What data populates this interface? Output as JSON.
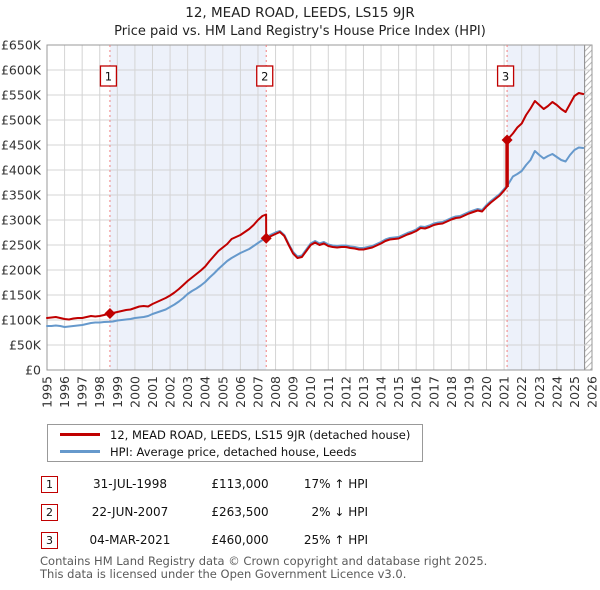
{
  "header": {
    "title": "12, MEAD ROAD, LEEDS, LS15 9JR",
    "subtitle": "Price paid vs. HM Land Registry's House Price Index (HPI)"
  },
  "legend": {
    "series": [
      {
        "label": "12, MEAD ROAD, LEEDS, LS15 9JR (detached house)",
        "color": "#c00000"
      },
      {
        "label": "HPI: Average price, detached house, Leeds",
        "color": "#6699cc"
      }
    ]
  },
  "transactions": [
    {
      "num": "1",
      "date": "31-JUL-1998",
      "price": "£113,000",
      "hpi": "17% ↑ HPI"
    },
    {
      "num": "2",
      "date": "22-JUN-2007",
      "price": "£263,500",
      "hpi": "2% ↓ HPI"
    },
    {
      "num": "3",
      "date": "04-MAR-2021",
      "price": "£460,000",
      "hpi": "25% ↑ HPI"
    }
  ],
  "footer": {
    "line1": "Contains HM Land Registry data © Crown copyright and database right 2025.",
    "line2": "This data is licensed under the Open Government Licence v3.0."
  },
  "colors": {
    "property_line": "#c00000",
    "hpi_line": "#6699cc",
    "sale_dashed_line": "#f08080",
    "shaded_band": "#edf1fa",
    "gridline": "#d4d4d4",
    "frame": "#999999",
    "axis_text": "#333333",
    "hatch_line": "#bbbbbb"
  },
  "chart_data": {
    "type": "line",
    "title": "12, MEAD ROAD, LEEDS, LS15 9JR",
    "subtitle": "Price paid vs. HM Land Registry's House Price Index (HPI)",
    "unit": "GBP thousands",
    "x_range": [
      1995,
      2026
    ],
    "ylim_k": [
      0,
      650
    ],
    "grid": true,
    "legend_position": "bottom-left",
    "y_ticks": [
      {
        "v": 0,
        "label": "£0"
      },
      {
        "v": 50,
        "label": "£50K"
      },
      {
        "v": 100,
        "label": "£100K"
      },
      {
        "v": 150,
        "label": "£150K"
      },
      {
        "v": 200,
        "label": "£200K"
      },
      {
        "v": 250,
        "label": "£250K"
      },
      {
        "v": 300,
        "label": "£300K"
      },
      {
        "v": 350,
        "label": "£350K"
      },
      {
        "v": 400,
        "label": "£400K"
      },
      {
        "v": 450,
        "label": "£450K"
      },
      {
        "v": 500,
        "label": "£500K"
      },
      {
        "v": 550,
        "label": "£550K"
      },
      {
        "v": 600,
        "label": "£600K"
      },
      {
        "v": 650,
        "label": "£650K"
      }
    ],
    "x_ticks": [
      1995,
      1996,
      1997,
      1998,
      1999,
      2000,
      2001,
      2002,
      2003,
      2004,
      2005,
      2006,
      2007,
      2008,
      2009,
      2010,
      2011,
      2012,
      2013,
      2014,
      2015,
      2016,
      2017,
      2018,
      2019,
      2020,
      2021,
      2022,
      2023,
      2024,
      2025,
      2026
    ],
    "shaded_bands": [
      [
        1998.58,
        2007.47
      ],
      [
        2021.17,
        2025.58
      ]
    ],
    "future_hatch": [
      2025.58,
      2026
    ],
    "sale_markers": [
      {
        "num": "1",
        "x": 1998.58,
        "value_k": 113,
        "date": "31-JUL-1998",
        "vs_hpi": "17% ↑ HPI"
      },
      {
        "num": "2",
        "x": 2007.47,
        "value_k": 263.5,
        "date": "22-JUN-2007",
        "vs_hpi": "2% ↓ HPI"
      },
      {
        "num": "3",
        "x": 2021.17,
        "value_k": 460,
        "date": "04-MAR-2021",
        "vs_hpi": "25% ↑ HPI",
        "jump_from_k": 366
      }
    ],
    "series": [
      {
        "name": "HPI: Average price, detached house, Leeds",
        "color": "#6699cc",
        "points": [
          [
            1995.0,
            88
          ],
          [
            1995.25,
            88
          ],
          [
            1995.5,
            89
          ],
          [
            1995.75,
            88
          ],
          [
            1996.0,
            86
          ],
          [
            1996.25,
            87
          ],
          [
            1996.5,
            88
          ],
          [
            1996.75,
            89
          ],
          [
            1997.0,
            90
          ],
          [
            1997.25,
            92
          ],
          [
            1997.5,
            94
          ],
          [
            1997.75,
            95
          ],
          [
            1998.0,
            95
          ],
          [
            1998.25,
            96
          ],
          [
            1998.58,
            96.5
          ],
          [
            1998.75,
            97
          ],
          [
            1999.0,
            99
          ],
          [
            1999.25,
            100
          ],
          [
            1999.5,
            101
          ],
          [
            1999.75,
            102
          ],
          [
            2000.0,
            104
          ],
          [
            2000.25,
            105
          ],
          [
            2000.5,
            106
          ],
          [
            2000.75,
            108
          ],
          [
            2001.0,
            112
          ],
          [
            2001.25,
            115
          ],
          [
            2001.5,
            118
          ],
          [
            2001.75,
            121
          ],
          [
            2002.0,
            126
          ],
          [
            2002.25,
            131
          ],
          [
            2002.5,
            137
          ],
          [
            2002.75,
            144
          ],
          [
            2003.0,
            152
          ],
          [
            2003.25,
            158
          ],
          [
            2003.5,
            163
          ],
          [
            2003.75,
            169
          ],
          [
            2004.0,
            176
          ],
          [
            2004.25,
            185
          ],
          [
            2004.5,
            193
          ],
          [
            2004.75,
            202
          ],
          [
            2005.0,
            210
          ],
          [
            2005.25,
            218
          ],
          [
            2005.5,
            224
          ],
          [
            2005.75,
            229
          ],
          [
            2006.0,
            234
          ],
          [
            2006.25,
            238
          ],
          [
            2006.5,
            242
          ],
          [
            2006.75,
            248
          ],
          [
            2007.0,
            254
          ],
          [
            2007.25,
            260
          ],
          [
            2007.5,
            266
          ],
          [
            2007.75,
            271
          ],
          [
            2008.0,
            275
          ],
          [
            2008.25,
            278
          ],
          [
            2008.5,
            270
          ],
          [
            2008.75,
            252
          ],
          [
            2009.0,
            236
          ],
          [
            2009.25,
            227
          ],
          [
            2009.5,
            229
          ],
          [
            2009.75,
            241
          ],
          [
            2010.0,
            253
          ],
          [
            2010.25,
            258
          ],
          [
            2010.5,
            253
          ],
          [
            2010.75,
            256
          ],
          [
            2011.0,
            251
          ],
          [
            2011.25,
            249
          ],
          [
            2011.5,
            248
          ],
          [
            2011.75,
            249
          ],
          [
            2012.0,
            249
          ],
          [
            2012.25,
            247
          ],
          [
            2012.5,
            246
          ],
          [
            2012.75,
            244
          ],
          [
            2013.0,
            244
          ],
          [
            2013.25,
            246
          ],
          [
            2013.5,
            248
          ],
          [
            2013.75,
            252
          ],
          [
            2014.0,
            256
          ],
          [
            2014.25,
            261
          ],
          [
            2014.5,
            264
          ],
          [
            2014.75,
            265
          ],
          [
            2015.0,
            266
          ],
          [
            2015.25,
            270
          ],
          [
            2015.5,
            274
          ],
          [
            2015.75,
            277
          ],
          [
            2016.0,
            281
          ],
          [
            2016.25,
            287
          ],
          [
            2016.5,
            286
          ],
          [
            2016.75,
            289
          ],
          [
            2017.0,
            293
          ],
          [
            2017.25,
            295
          ],
          [
            2017.5,
            296
          ],
          [
            2017.75,
            300
          ],
          [
            2018.0,
            304
          ],
          [
            2018.25,
            307
          ],
          [
            2018.5,
            308
          ],
          [
            2018.75,
            312
          ],
          [
            2019.0,
            316
          ],
          [
            2019.25,
            319
          ],
          [
            2019.5,
            322
          ],
          [
            2019.75,
            320
          ],
          [
            2020.0,
            330
          ],
          [
            2020.25,
            338
          ],
          [
            2020.5,
            345
          ],
          [
            2020.75,
            352
          ],
          [
            2021.0,
            362
          ],
          [
            2021.17,
            368
          ],
          [
            2021.5,
            387
          ],
          [
            2021.75,
            392
          ],
          [
            2022.0,
            398
          ],
          [
            2022.25,
            410
          ],
          [
            2022.5,
            420
          ],
          [
            2022.75,
            438
          ],
          [
            2023.0,
            430
          ],
          [
            2023.25,
            423
          ],
          [
            2023.5,
            428
          ],
          [
            2023.75,
            432
          ],
          [
            2024.0,
            426
          ],
          [
            2024.25,
            420
          ],
          [
            2024.5,
            417
          ],
          [
            2024.75,
            430
          ],
          [
            2025.0,
            440
          ],
          [
            2025.25,
            445
          ],
          [
            2025.5,
            444
          ]
        ]
      },
      {
        "name": "12, MEAD ROAD, LEEDS, LS15 9JR (detached house)",
        "color": "#c00000",
        "points": [
          [
            1995.0,
            104
          ],
          [
            1995.25,
            105
          ],
          [
            1995.5,
            106
          ],
          [
            1995.75,
            104
          ],
          [
            1996.0,
            102
          ],
          [
            1996.25,
            101
          ],
          [
            1996.5,
            103
          ],
          [
            1996.75,
            104
          ],
          [
            1997.0,
            104
          ],
          [
            1997.25,
            106
          ],
          [
            1997.5,
            108
          ],
          [
            1997.75,
            107
          ],
          [
            1998.0,
            108
          ],
          [
            1998.25,
            110
          ],
          [
            1998.58,
            113
          ],
          [
            1998.75,
            114
          ],
          [
            1999.0,
            116
          ],
          [
            1999.25,
            118
          ],
          [
            1999.5,
            120
          ],
          [
            1999.75,
            121
          ],
          [
            2000.0,
            124
          ],
          [
            2000.25,
            127
          ],
          [
            2000.5,
            128
          ],
          [
            2000.75,
            127
          ],
          [
            2001.0,
            132
          ],
          [
            2001.25,
            136
          ],
          [
            2001.5,
            140
          ],
          [
            2001.75,
            144
          ],
          [
            2002.0,
            149
          ],
          [
            2002.25,
            155
          ],
          [
            2002.5,
            162
          ],
          [
            2002.75,
            170
          ],
          [
            2003.0,
            178
          ],
          [
            2003.25,
            185
          ],
          [
            2003.5,
            192
          ],
          [
            2003.75,
            199
          ],
          [
            2004.0,
            207
          ],
          [
            2004.25,
            218
          ],
          [
            2004.5,
            228
          ],
          [
            2004.75,
            238
          ],
          [
            2005.0,
            245
          ],
          [
            2005.25,
            252
          ],
          [
            2005.5,
            262
          ],
          [
            2005.75,
            266
          ],
          [
            2006.0,
            270
          ],
          [
            2006.25,
            276
          ],
          [
            2006.5,
            282
          ],
          [
            2006.75,
            290
          ],
          [
            2007.0,
            300
          ],
          [
            2007.25,
            308
          ],
          [
            2007.46,
            311
          ],
          [
            2007.47,
            263.5
          ],
          [
            2007.75,
            268
          ],
          [
            2008.0,
            272
          ],
          [
            2008.25,
            276
          ],
          [
            2008.5,
            268
          ],
          [
            2008.75,
            250
          ],
          [
            2009.0,
            233
          ],
          [
            2009.25,
            224
          ],
          [
            2009.5,
            226
          ],
          [
            2009.75,
            238
          ],
          [
            2010.0,
            250
          ],
          [
            2010.25,
            255
          ],
          [
            2010.5,
            250
          ],
          [
            2010.75,
            253
          ],
          [
            2011.0,
            248
          ],
          [
            2011.25,
            246
          ],
          [
            2011.5,
            245
          ],
          [
            2011.75,
            246
          ],
          [
            2012.0,
            246
          ],
          [
            2012.25,
            244
          ],
          [
            2012.5,
            243
          ],
          [
            2012.75,
            241
          ],
          [
            2013.0,
            241
          ],
          [
            2013.25,
            243
          ],
          [
            2013.5,
            245
          ],
          [
            2013.75,
            249
          ],
          [
            2014.0,
            253
          ],
          [
            2014.25,
            258
          ],
          [
            2014.5,
            261
          ],
          [
            2014.75,
            262
          ],
          [
            2015.0,
            263
          ],
          [
            2015.25,
            267
          ],
          [
            2015.5,
            271
          ],
          [
            2015.75,
            274
          ],
          [
            2016.0,
            278
          ],
          [
            2016.25,
            284
          ],
          [
            2016.5,
            283
          ],
          [
            2016.75,
            286
          ],
          [
            2017.0,
            290
          ],
          [
            2017.25,
            292
          ],
          [
            2017.5,
            293
          ],
          [
            2017.75,
            297
          ],
          [
            2018.0,
            301
          ],
          [
            2018.25,
            304
          ],
          [
            2018.5,
            305
          ],
          [
            2018.75,
            309
          ],
          [
            2019.0,
            313
          ],
          [
            2019.25,
            316
          ],
          [
            2019.5,
            319
          ],
          [
            2019.75,
            317
          ],
          [
            2020.0,
            327
          ],
          [
            2020.25,
            335
          ],
          [
            2020.5,
            342
          ],
          [
            2020.75,
            349
          ],
          [
            2021.0,
            359
          ],
          [
            2021.16,
            366
          ],
          [
            2021.17,
            460
          ],
          [
            2021.5,
            473
          ],
          [
            2021.75,
            485
          ],
          [
            2022.0,
            493
          ],
          [
            2022.25,
            510
          ],
          [
            2022.5,
            523
          ],
          [
            2022.75,
            538
          ],
          [
            2023.0,
            530
          ],
          [
            2023.25,
            522
          ],
          [
            2023.5,
            528
          ],
          [
            2023.75,
            536
          ],
          [
            2024.0,
            530
          ],
          [
            2024.25,
            522
          ],
          [
            2024.5,
            516
          ],
          [
            2024.75,
            532
          ],
          [
            2025.0,
            548
          ],
          [
            2025.25,
            554
          ],
          [
            2025.5,
            552
          ]
        ]
      }
    ]
  }
}
